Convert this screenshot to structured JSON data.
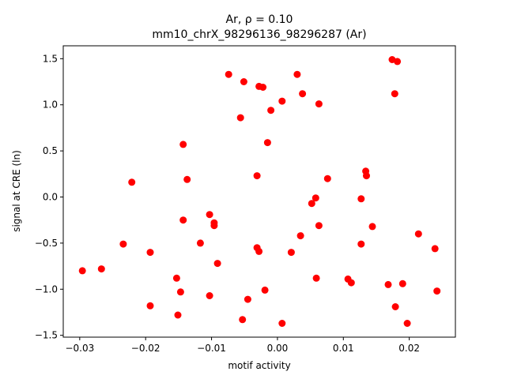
{
  "chart_data": {
    "type": "scatter",
    "title_line1": "Ar, ρ = 0.10",
    "title_line2": "mm10_chrX_98296136_98296287 (Ar)",
    "xlabel": "motif activity",
    "ylabel": "signal at CRE (ln)",
    "xlim": [
      -0.0325,
      0.027
    ],
    "ylim": [
      -1.52,
      1.64
    ],
    "xticks": [
      -0.03,
      -0.02,
      -0.01,
      0.0,
      0.01,
      0.02
    ],
    "xtick_labels": [
      "−0.03",
      "−0.02",
      "−0.01",
      "0.00",
      "0.01",
      "0.02"
    ],
    "yticks": [
      -1.5,
      -1.0,
      -0.5,
      0.0,
      0.5,
      1.0,
      1.5
    ],
    "ytick_labels": [
      "−1.5",
      "−1.0",
      "−0.5",
      "0.0",
      "0.5",
      "1.0",
      "1.5"
    ],
    "marker_color": "#ff0000",
    "points": [
      {
        "x": -0.0296,
        "y": -0.8
      },
      {
        "x": -0.0267,
        "y": -0.78
      },
      {
        "x": -0.0234,
        "y": -0.51
      },
      {
        "x": -0.0221,
        "y": 0.16
      },
      {
        "x": -0.0193,
        "y": -0.6
      },
      {
        "x": -0.0193,
        "y": -1.18
      },
      {
        "x": -0.0153,
        "y": -0.88
      },
      {
        "x": -0.0151,
        "y": -1.28
      },
      {
        "x": -0.0147,
        "y": -1.03
      },
      {
        "x": -0.0143,
        "y": 0.57
      },
      {
        "x": -0.0143,
        "y": -0.25
      },
      {
        "x": -0.0137,
        "y": 0.19
      },
      {
        "x": -0.0117,
        "y": -0.5
      },
      {
        "x": -0.0103,
        "y": -0.19
      },
      {
        "x": -0.0103,
        "y": -1.07
      },
      {
        "x": -0.0096,
        "y": -0.28
      },
      {
        "x": -0.0096,
        "y": -0.31
      },
      {
        "x": -0.0091,
        "y": -0.72
      },
      {
        "x": -0.0074,
        "y": 1.33
      },
      {
        "x": -0.0056,
        "y": 0.86
      },
      {
        "x": -0.0053,
        "y": -1.33
      },
      {
        "x": -0.0051,
        "y": 1.25
      },
      {
        "x": -0.0045,
        "y": -1.11
      },
      {
        "x": -0.0031,
        "y": 0.23
      },
      {
        "x": -0.0031,
        "y": -0.55
      },
      {
        "x": -0.0028,
        "y": 1.2
      },
      {
        "x": -0.0028,
        "y": -0.59
      },
      {
        "x": -0.0022,
        "y": 1.19
      },
      {
        "x": -0.0019,
        "y": -1.01
      },
      {
        "x": -0.0015,
        "y": 0.59
      },
      {
        "x": -0.001,
        "y": 0.94
      },
      {
        "x": 0.0007,
        "y": 1.04
      },
      {
        "x": 0.0007,
        "y": -1.37
      },
      {
        "x": 0.0021,
        "y": -0.6
      },
      {
        "x": 0.003,
        "y": 1.33
      },
      {
        "x": 0.0035,
        "y": -0.42
      },
      {
        "x": 0.0038,
        "y": 1.12
      },
      {
        "x": 0.0052,
        "y": -0.07
      },
      {
        "x": 0.0058,
        "y": -0.01
      },
      {
        "x": 0.0059,
        "y": -0.88
      },
      {
        "x": 0.0063,
        "y": 1.01
      },
      {
        "x": 0.0063,
        "y": -0.31
      },
      {
        "x": 0.0076,
        "y": 0.2
      },
      {
        "x": 0.0107,
        "y": -0.89
      },
      {
        "x": 0.0112,
        "y": -0.93
      },
      {
        "x": 0.0127,
        "y": -0.02
      },
      {
        "x": 0.0127,
        "y": -0.51
      },
      {
        "x": 0.0134,
        "y": 0.28
      },
      {
        "x": 0.0135,
        "y": 0.23
      },
      {
        "x": 0.0144,
        "y": -0.32
      },
      {
        "x": 0.0168,
        "y": -0.95
      },
      {
        "x": 0.0174,
        "y": 1.49
      },
      {
        "x": 0.0178,
        "y": 1.12
      },
      {
        "x": 0.0179,
        "y": -1.19
      },
      {
        "x": 0.0182,
        "y": 1.47
      },
      {
        "x": 0.019,
        "y": -0.94
      },
      {
        "x": 0.0197,
        "y": -1.37
      },
      {
        "x": 0.0214,
        "y": -0.4
      },
      {
        "x": 0.0239,
        "y": -0.56
      },
      {
        "x": 0.0242,
        "y": -1.02
      }
    ]
  }
}
